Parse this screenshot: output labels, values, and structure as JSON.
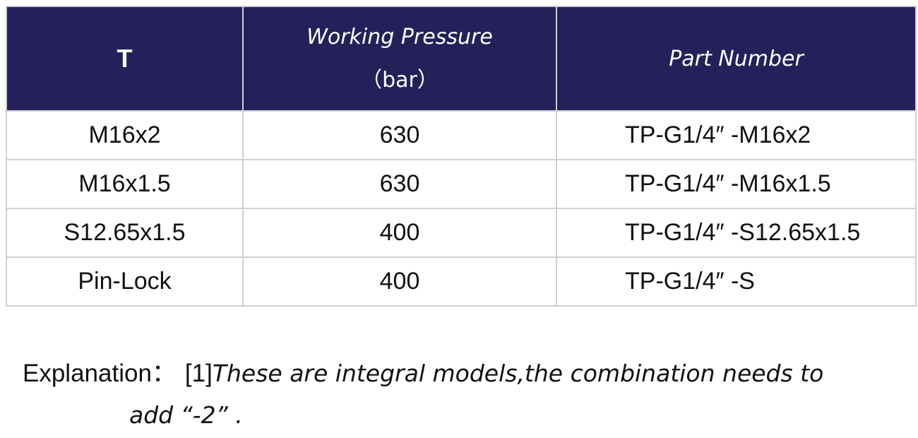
{
  "table": {
    "header": [
      {
        "title": "T"
      },
      {
        "title": "Working Pressure",
        "unit": "（bar）"
      },
      {
        "title": "Part Number"
      }
    ],
    "rows": [
      [
        "M16x2",
        630,
        "TP-G1/4″ -M16x2"
      ],
      [
        "M16x1.5",
        630,
        "TP-G1/4″ -M16x1.5"
      ],
      [
        "S12.65x1.5",
        400,
        "TP-G1/4″ -S12.65x1.5"
      ],
      [
        "Pin-Lock",
        400,
        "TP-G1/4″ -S"
      ]
    ]
  },
  "explanation": {
    "label": "Explanation：",
    "marker": "[1]",
    "lines": [
      "These are integral models,the combination needs to",
      "add “-2” ."
    ]
  }
}
